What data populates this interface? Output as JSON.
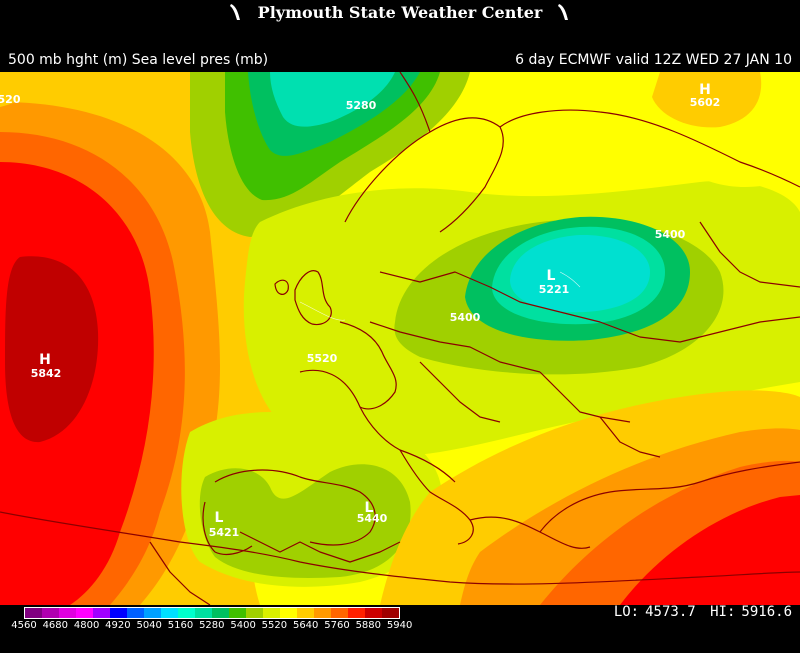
{
  "header": {
    "center_title": "Plymouth State Weather Center",
    "left_label": "500 mb hght (m) Sea level pres (mb)",
    "right_label": "6 day ECMWF  valid 12Z  WED 27 JAN 10"
  },
  "map": {
    "pressure_centers": [
      {
        "type": "H",
        "value": "5842"
      },
      {
        "type": "H",
        "value": "5602"
      },
      {
        "type": "L",
        "value": "5221"
      },
      {
        "type": "L",
        "value": "5421"
      },
      {
        "type": "L",
        "value": "5440"
      }
    ],
    "contour_labels": [
      "5280",
      "5400",
      "5400",
      "5520",
      "520"
    ]
  },
  "colorbar": {
    "colors": [
      "#800080",
      "#b000b0",
      "#e000e0",
      "#ff00ff",
      "#a000ff",
      "#0000ff",
      "#0060ff",
      "#00a0ff",
      "#00e0ff",
      "#00ffcc",
      "#00e0a0",
      "#00c060",
      "#40c000",
      "#a0d000",
      "#d8f000",
      "#ffff00",
      "#ffcc00",
      "#ff9900",
      "#ff6600",
      "#ff2000",
      "#cc0000",
      "#a00000"
    ],
    "tick_labels": [
      "4560",
      "4680",
      "4800",
      "4920",
      "5040",
      "5160",
      "5280",
      "5400",
      "5520",
      "5640",
      "5760",
      "5880",
      "5940"
    ]
  },
  "stats": {
    "lo_label": "LO:",
    "lo_value": "4573.7",
    "hi_label": "HI:",
    "hi_value": "5916.6"
  }
}
